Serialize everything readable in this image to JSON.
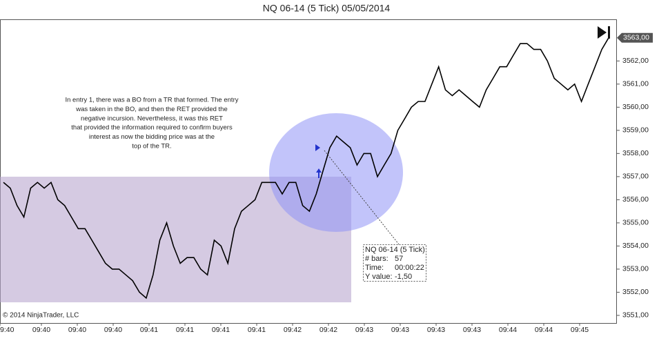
{
  "chart_data": {
    "type": "line",
    "title": "NQ 06-14 (5 Tick)  05/05/2014",
    "watermark": "© 2014 NinjaTrader, LLC",
    "annotation": [
      "In entry 1, there was a BO from a TR that formed. The entry",
      "was taken in the BO, and then the RET provided the",
      "negative incursion. Nevertheless, it was this RET",
      "that provided the information required to confirm buyers",
      "interest as now the bidding price was at the",
      "top of the TR."
    ],
    "tooltip": {
      "title": "NQ 06-14 (5 Tick)",
      "bars_label": "# bars:",
      "bars": "57",
      "time_label": "Time:",
      "time": "00:00:22",
      "y_label": "Y value:",
      "y_value": "-1,50"
    },
    "last_price": {
      "value": 3563,
      "label": "3563,00"
    },
    "x_labels": [
      "9:40",
      "09:40",
      "09:40",
      "09:40",
      "09:41",
      "09:41",
      "09:41",
      "09:41",
      "09:42",
      "09:42",
      "09:43",
      "09:43",
      "09:43",
      "09:43",
      "09:44",
      "09:44",
      "09:45"
    ],
    "color": "#000000",
    "values": [
      3556.75,
      3556.5,
      3555.75,
      3555.25,
      3556.5,
      3556.75,
      3556.5,
      3556.75,
      3556,
      3555.75,
      3555.25,
      3554.75,
      3554.75,
      3554.25,
      3553.75,
      3553.25,
      3553,
      3553,
      3552.75,
      3552.5,
      3552,
      3551.75,
      3552.75,
      3554.25,
      3555,
      3554,
      3553.25,
      3553.5,
      3553.5,
      3553,
      3552.75,
      3554.25,
      3554,
      3553.25,
      3554.75,
      3555.5,
      3555.75,
      3556,
      3556.75,
      3556.75,
      3556.75,
      3556.25,
      3556.75,
      3556.75,
      3555.75,
      3555.5,
      3556.25,
      3557.25,
      3558.25,
      3558.75,
      3558.5,
      3558.25,
      3557.5,
      3558,
      3558,
      3557,
      3557.5,
      3558,
      3559,
      3559.5,
      3560,
      3560.25,
      3560.25,
      3561,
      3561.75,
      3560.75,
      3560.5,
      3560.75,
      3560.5,
      3560.25,
      3560,
      3560.75,
      3561.25,
      3561.75,
      3561.75,
      3562.25,
      3562.75,
      3562.75,
      3562.5,
      3562.5,
      3562,
      3561.25,
      3561,
      3560.75,
      3561,
      3560.25,
      3561,
      3561.75,
      3562.5,
      3563
    ],
    "ylim": [
      3550.67,
      3563.8
    ],
    "yticks": [
      {
        "value": 3551,
        "label": "3551,00"
      },
      {
        "value": 3552,
        "label": "3552,00"
      },
      {
        "value": 3553,
        "label": "3553,00"
      },
      {
        "value": 3554,
        "label": "3554,00"
      },
      {
        "value": 3555,
        "label": "3555,00"
      },
      {
        "value": 3556,
        "label": "3556,00"
      },
      {
        "value": 3557,
        "label": "3557,00"
      },
      {
        "value": 3558,
        "label": "3558,00"
      },
      {
        "value": 3559,
        "label": "3559,00"
      },
      {
        "value": 3560,
        "label": "3560,00"
      },
      {
        "value": 3561,
        "label": "3561,00"
      },
      {
        "value": 3562,
        "label": "3562,00"
      }
    ]
  }
}
